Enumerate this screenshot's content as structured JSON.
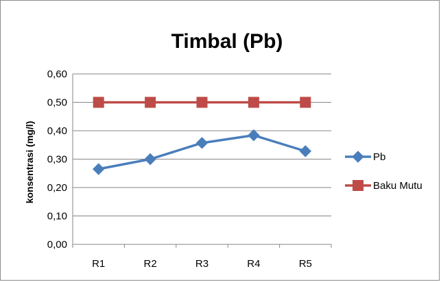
{
  "chart_data": {
    "type": "line",
    "title": "Timbal (Pb)",
    "xlabel": "",
    "ylabel": "konsentrasi (mg/l)",
    "categories": [
      "R1",
      "R2",
      "R3",
      "R4",
      "R5"
    ],
    "ylim": [
      0,
      0.6
    ],
    "yticks": [
      "0,00",
      "0,10",
      "0,20",
      "0,30",
      "0,40",
      "0,50",
      "0,60"
    ],
    "grid": true,
    "legend_position": "right",
    "series": [
      {
        "name": "Pb",
        "values": [
          0.265,
          0.3,
          0.357,
          0.384,
          0.328
        ],
        "color": "#4a7ebb",
        "marker": "diamond"
      },
      {
        "name": "Baku Mutu",
        "values": [
          0.5,
          0.5,
          0.5,
          0.5,
          0.5
        ],
        "color": "#be4b48",
        "marker": "square"
      }
    ]
  }
}
